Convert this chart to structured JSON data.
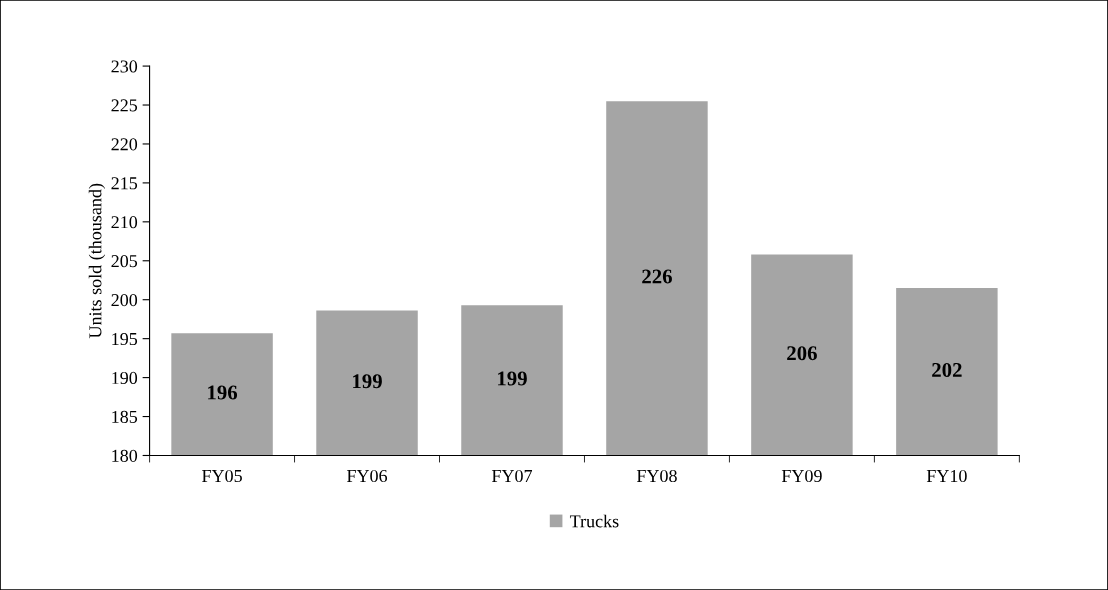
{
  "chart_data": {
    "type": "bar",
    "ylabel": "Units sold (thousand)",
    "categories": [
      "FY05",
      "FY06",
      "FY07",
      "FY08",
      "FY09",
      "FY10"
    ],
    "series": [
      {
        "name": "Trucks",
        "color": "#a5a5a5",
        "values": [
          195.7,
          198.6,
          199.3,
          225.5,
          205.8,
          201.5
        ],
        "value_labels": [
          "196",
          "199",
          "199",
          "226",
          "206",
          "202"
        ]
      }
    ],
    "ylim": [
      180,
      230
    ],
    "yticks": [
      180,
      185,
      190,
      195,
      200,
      205,
      210,
      215,
      220,
      225,
      230
    ],
    "grid": false,
    "legend": "bottom"
  }
}
